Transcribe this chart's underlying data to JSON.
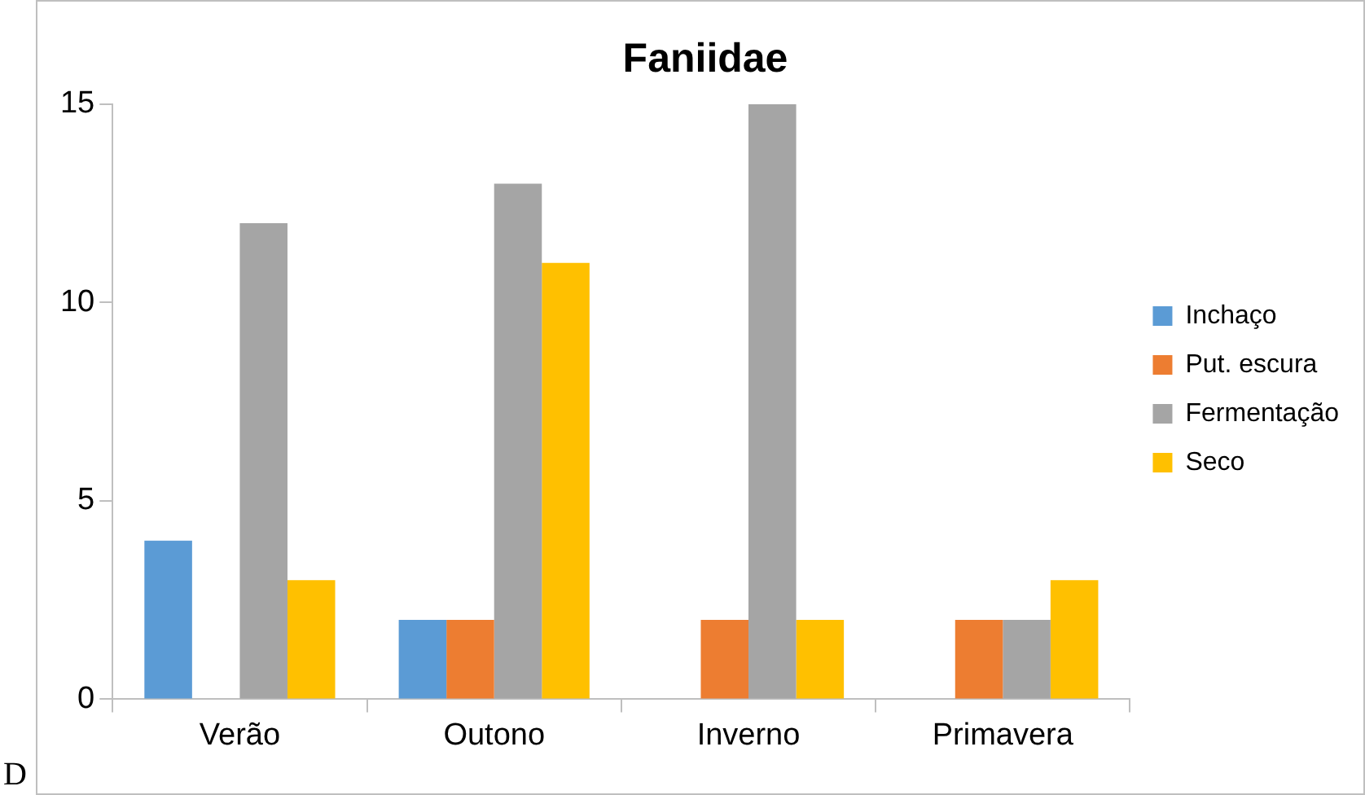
{
  "chart_data": {
    "type": "bar",
    "title": "Faniidae",
    "categories": [
      "Verão",
      "Outono",
      "Inverno",
      "Primavera"
    ],
    "series": [
      {
        "name": "Inchaço",
        "color": "#5b9bd5",
        "values": [
          4,
          2,
          0,
          0
        ]
      },
      {
        "name": "Put. escura",
        "color": "#ed7d31",
        "values": [
          0,
          2,
          2,
          2
        ]
      },
      {
        "name": "Fermentação",
        "color": "#a5a5a5",
        "values": [
          12,
          13,
          15,
          2
        ]
      },
      {
        "name": "Seco",
        "color": "#ffc000",
        "values": [
          3,
          11,
          2,
          3
        ]
      }
    ],
    "ylim": [
      0,
      15
    ],
    "yticks": [
      0,
      5,
      10,
      15
    ],
    "grid": false,
    "legend": "right",
    "annotations": [
      "D"
    ]
  }
}
